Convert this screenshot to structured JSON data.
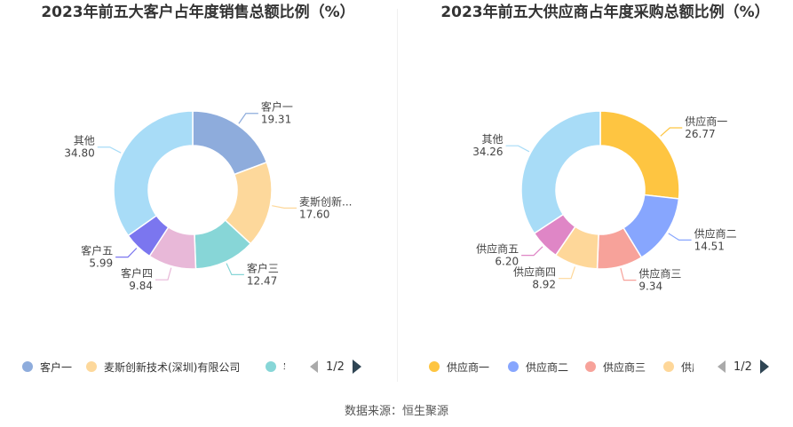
{
  "source": "数据来源：恒生聚源",
  "chart_data": [
    {
      "type": "pie",
      "title": "2023年前五大客户占年度销售总额比例（%）",
      "labels": [
        "客户一",
        "麦斯创新技术(深圳)有限公司",
        "客户三",
        "客户四",
        "客户五",
        "其他"
      ],
      "display_labels": [
        "客户一",
        "麦斯创新...",
        "客户三",
        "客户四",
        "客户五",
        "其他"
      ],
      "values": [
        19.31,
        17.6,
        12.47,
        9.84,
        5.99,
        34.8
      ],
      "value_labels": [
        "19.31",
        "17.60",
        "12.47",
        "9.84",
        "5.99",
        "34.80"
      ],
      "colors": [
        "#8eacdc",
        "#fdd89b",
        "#87d6d7",
        "#e8b8d8",
        "#7b76ef",
        "#a8dcf7"
      ],
      "legend": {
        "position": "bottom",
        "visible_items": [
          "客户一",
          "麦斯创新技术(深圳)有限公司",
          "客户三"
        ],
        "truncated_item": "客户三",
        "page": "1/2"
      }
    },
    {
      "type": "pie",
      "title": "2023年前五大供应商占年度采购总额比例（%）",
      "labels": [
        "供应商一",
        "供应商二",
        "供应商三",
        "供应商四",
        "供应商五",
        "其他"
      ],
      "display_labels": [
        "供应商一",
        "供应商二",
        "供应商三",
        "供应商四",
        "供应商五",
        "其他"
      ],
      "values": [
        26.77,
        14.51,
        9.34,
        8.92,
        6.2,
        34.26
      ],
      "value_labels": [
        "26.77",
        "14.51",
        "9.34",
        "8.92",
        "6.20",
        "34.26"
      ],
      "colors": [
        "#fec541",
        "#87a6fe",
        "#f7a29a",
        "#fed799",
        "#df86c6",
        "#a8dcf7"
      ],
      "legend": {
        "position": "bottom",
        "visible_items": [
          "供应商一",
          "供应商二",
          "供应商三",
          "供应商四"
        ],
        "truncated_item": "供应商四",
        "page": "1/2"
      }
    }
  ]
}
